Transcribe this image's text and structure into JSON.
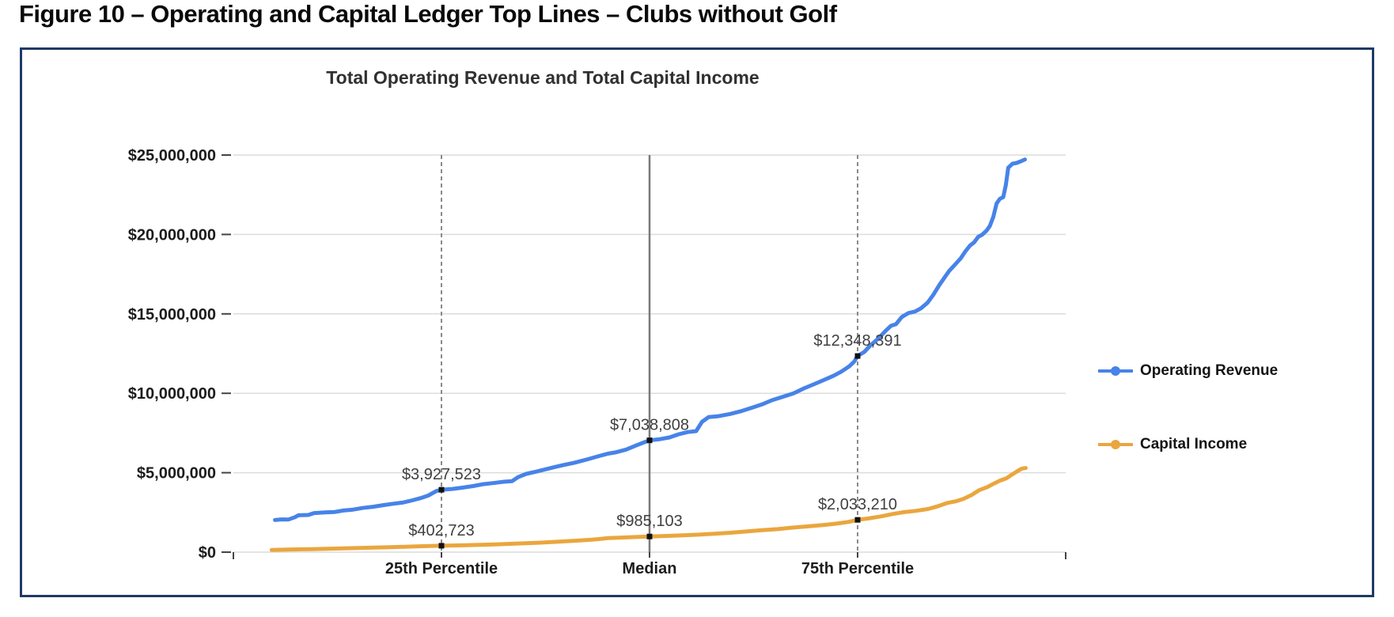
{
  "page": {
    "figure_title": "Figure 10 – Operating and Capital Ledger Top Lines – Clubs without Golf"
  },
  "chart_data": {
    "type": "line",
    "title": "Total Operating Revenue and Total Capital Income",
    "xlabel": "",
    "ylabel": "",
    "ylim": [
      0,
      25000000
    ],
    "grid": true,
    "legend_position": "right",
    "y_ticks": [
      {
        "value_m": 0,
        "label": "$0"
      },
      {
        "value_m": 5,
        "label": "$5,000,000"
      },
      {
        "value_m": 10,
        "label": "$10,000,000"
      },
      {
        "value_m": 15,
        "label": "$15,000,000"
      },
      {
        "value_m": 20,
        "label": "$20,000,000"
      },
      {
        "value_m": 25,
        "label": "$25,000,000"
      }
    ],
    "percentile_lines": [
      {
        "percent": 25,
        "label": "25th Percentile",
        "style": "dashed"
      },
      {
        "percent": 50,
        "label": "Median",
        "style": "solid"
      },
      {
        "percent": 75,
        "label": "75th Percentile",
        "style": "dashed"
      }
    ],
    "colors": {
      "frame_border": "#1e3a66",
      "gridline": "#dcdcdc",
      "dashed_line": "#8a8a8a",
      "median_line": "#7a7a7a",
      "marker": "#111111",
      "data_label": "#3f3f3f",
      "axis_label": "#1c1c1c",
      "axis_tick": "#444444"
    },
    "series": [
      {
        "name": "Operating Revenue",
        "color": "#4783e8",
        "annotations": [
          {
            "percent": 25,
            "label": "$3,927,523",
            "value_m": 3.9275
          },
          {
            "percent": 50,
            "label": "$7,038,808",
            "value_m": 7.0388
          },
          {
            "percent": 75,
            "label": "$12,348,391",
            "value_m": 12.3484
          }
        ],
        "points": [
          [
            5.0,
            2.02
          ],
          [
            5.8,
            2.06
          ],
          [
            6.6,
            2.05
          ],
          [
            7.4,
            2.2
          ],
          [
            7.8,
            2.32
          ],
          [
            9.0,
            2.34
          ],
          [
            9.7,
            2.46
          ],
          [
            11.0,
            2.5
          ],
          [
            12.2,
            2.53
          ],
          [
            13.2,
            2.62
          ],
          [
            14.4,
            2.68
          ],
          [
            15.5,
            2.78
          ],
          [
            16.8,
            2.86
          ],
          [
            18.0,
            2.96
          ],
          [
            19.2,
            3.05
          ],
          [
            20.3,
            3.12
          ],
          [
            21.5,
            3.26
          ],
          [
            22.5,
            3.4
          ],
          [
            23.4,
            3.56
          ],
          [
            24.4,
            3.85
          ],
          [
            25.0,
            3.9275
          ],
          [
            26.3,
            3.98
          ],
          [
            27.5,
            4.06
          ],
          [
            28.8,
            4.16
          ],
          [
            30.0,
            4.28
          ],
          [
            31.2,
            4.35
          ],
          [
            32.5,
            4.43
          ],
          [
            33.5,
            4.47
          ],
          [
            34.2,
            4.72
          ],
          [
            35.2,
            4.93
          ],
          [
            36.3,
            5.06
          ],
          [
            37.4,
            5.2
          ],
          [
            38.6,
            5.36
          ],
          [
            39.8,
            5.5
          ],
          [
            41.0,
            5.63
          ],
          [
            42.4,
            5.82
          ],
          [
            43.6,
            6.0
          ],
          [
            45.0,
            6.2
          ],
          [
            45.9,
            6.28
          ],
          [
            47.2,
            6.46
          ],
          [
            48.4,
            6.72
          ],
          [
            49.3,
            6.9
          ],
          [
            50.0,
            7.0388
          ],
          [
            51.1,
            7.1
          ],
          [
            52.4,
            7.22
          ],
          [
            53.5,
            7.42
          ],
          [
            54.6,
            7.56
          ],
          [
            55.6,
            7.62
          ],
          [
            56.3,
            8.2
          ],
          [
            57.1,
            8.5
          ],
          [
            58.3,
            8.56
          ],
          [
            59.7,
            8.7
          ],
          [
            60.9,
            8.86
          ],
          [
            62.1,
            9.06
          ],
          [
            63.5,
            9.3
          ],
          [
            64.7,
            9.56
          ],
          [
            65.9,
            9.76
          ],
          [
            67.3,
            10.0
          ],
          [
            68.5,
            10.3
          ],
          [
            69.7,
            10.56
          ],
          [
            70.8,
            10.8
          ],
          [
            72.1,
            11.1
          ],
          [
            73.0,
            11.35
          ],
          [
            74.0,
            11.7
          ],
          [
            74.6,
            12.0
          ],
          [
            75.0,
            12.3484
          ],
          [
            75.8,
            12.6
          ],
          [
            76.5,
            13.0
          ],
          [
            77.5,
            13.45
          ],
          [
            78.3,
            13.9
          ],
          [
            79.0,
            14.25
          ],
          [
            79.6,
            14.35
          ],
          [
            80.3,
            14.8
          ],
          [
            81.1,
            15.05
          ],
          [
            81.9,
            15.15
          ],
          [
            82.6,
            15.35
          ],
          [
            83.4,
            15.7
          ],
          [
            84.1,
            16.2
          ],
          [
            84.8,
            16.8
          ],
          [
            85.4,
            17.25
          ],
          [
            86.0,
            17.7
          ],
          [
            86.7,
            18.1
          ],
          [
            87.4,
            18.5
          ],
          [
            87.9,
            18.9
          ],
          [
            88.5,
            19.3
          ],
          [
            89.0,
            19.5
          ],
          [
            89.5,
            19.85
          ],
          [
            90.0,
            20.0
          ],
          [
            90.5,
            20.25
          ],
          [
            90.9,
            20.55
          ],
          [
            91.3,
            21.1
          ],
          [
            91.7,
            21.95
          ],
          [
            92.1,
            22.25
          ],
          [
            92.5,
            22.35
          ],
          [
            92.8,
            23.1
          ],
          [
            93.1,
            24.2
          ],
          [
            93.6,
            24.45
          ],
          [
            94.1,
            24.5
          ],
          [
            94.6,
            24.6
          ],
          [
            95.1,
            24.72
          ]
        ]
      },
      {
        "name": "Capital Income",
        "color": "#eaa63e",
        "annotations": [
          {
            "percent": 25,
            "label": "$402,723",
            "value_m": 0.4027
          },
          {
            "percent": 50,
            "label": "$985,103",
            "value_m": 0.9851
          },
          {
            "percent": 75,
            "label": "$2,033,210",
            "value_m": 2.0332
          }
        ],
        "points": [
          [
            4.6,
            0.14
          ],
          [
            7.0,
            0.17
          ],
          [
            9.3,
            0.19
          ],
          [
            11.7,
            0.22
          ],
          [
            14.1,
            0.25
          ],
          [
            16.4,
            0.28
          ],
          [
            18.8,
            0.31
          ],
          [
            21.2,
            0.35
          ],
          [
            23.1,
            0.38
          ],
          [
            25.0,
            0.4027
          ],
          [
            27.4,
            0.43
          ],
          [
            29.8,
            0.46
          ],
          [
            32.1,
            0.5
          ],
          [
            34.5,
            0.55
          ],
          [
            36.9,
            0.6
          ],
          [
            39.1,
            0.66
          ],
          [
            41.2,
            0.72
          ],
          [
            43.1,
            0.78
          ],
          [
            45.0,
            0.88
          ],
          [
            46.9,
            0.92
          ],
          [
            48.3,
            0.95
          ],
          [
            50.0,
            0.9851
          ],
          [
            52.1,
            1.02
          ],
          [
            54.0,
            1.06
          ],
          [
            55.9,
            1.1
          ],
          [
            57.8,
            1.16
          ],
          [
            59.7,
            1.22
          ],
          [
            61.6,
            1.3
          ],
          [
            63.5,
            1.38
          ],
          [
            65.4,
            1.45
          ],
          [
            67.3,
            1.55
          ],
          [
            69.2,
            1.63
          ],
          [
            71.1,
            1.72
          ],
          [
            72.5,
            1.8
          ],
          [
            73.9,
            1.9
          ],
          [
            75.0,
            2.0332
          ],
          [
            76.3,
            2.12
          ],
          [
            77.8,
            2.25
          ],
          [
            79.2,
            2.4
          ],
          [
            80.6,
            2.52
          ],
          [
            82.0,
            2.6
          ],
          [
            83.5,
            2.72
          ],
          [
            84.7,
            2.9
          ],
          [
            85.8,
            3.1
          ],
          [
            86.8,
            3.2
          ],
          [
            87.7,
            3.35
          ],
          [
            88.7,
            3.6
          ],
          [
            89.6,
            3.9
          ],
          [
            90.6,
            4.1
          ],
          [
            91.3,
            4.3
          ],
          [
            92.1,
            4.5
          ],
          [
            92.9,
            4.65
          ],
          [
            93.6,
            4.9
          ],
          [
            94.2,
            5.1
          ],
          [
            94.7,
            5.25
          ],
          [
            95.2,
            5.3
          ]
        ]
      }
    ]
  }
}
